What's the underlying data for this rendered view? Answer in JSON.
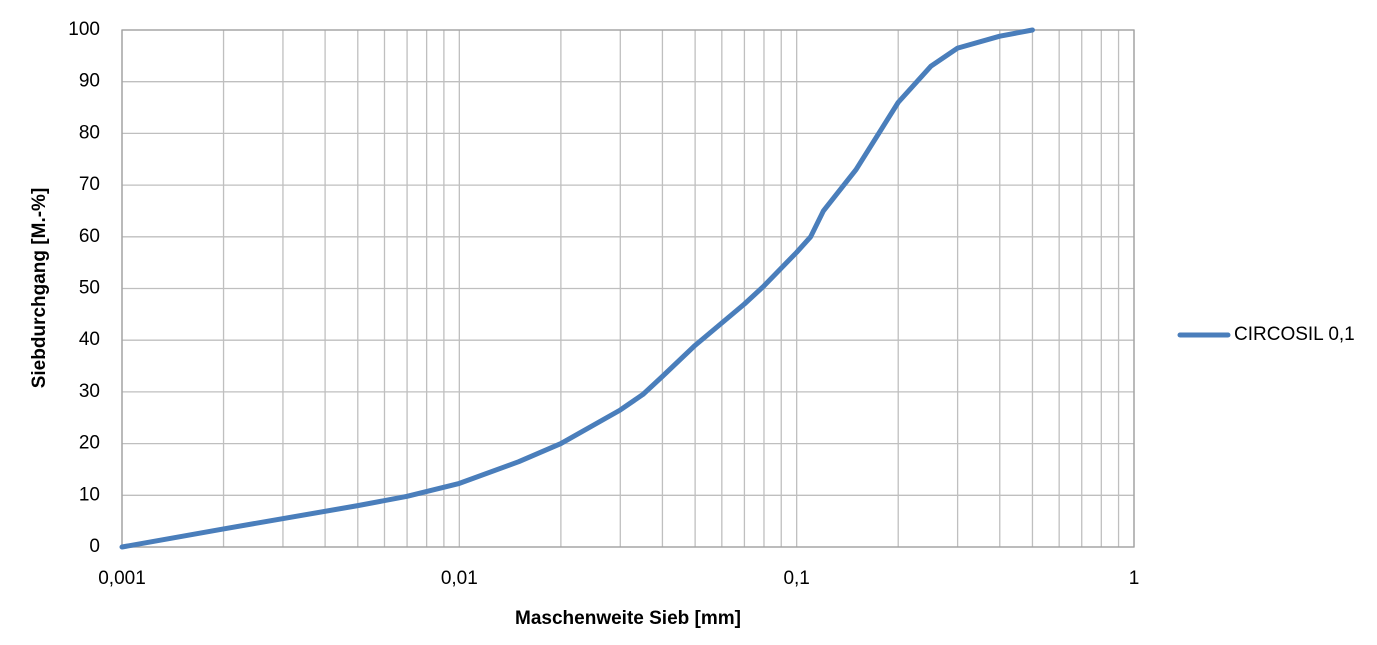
{
  "chart_data": {
    "type": "line",
    "xlabel": "Maschenweite Sieb [mm]",
    "ylabel": "Siebdurchgang [M.-%]",
    "x_log": true,
    "xlim": [
      0.001,
      1
    ],
    "xticks": [
      {
        "value": 0.001,
        "label": "0,001"
      },
      {
        "value": 0.01,
        "label": "0,01"
      },
      {
        "value": 0.1,
        "label": "0,1"
      },
      1
    ],
    "ylim": [
      0,
      100
    ],
    "yticks": [
      0,
      10,
      20,
      30,
      40,
      50,
      60,
      70,
      80,
      90,
      100
    ],
    "grid": true,
    "minor_grid": true,
    "legend": "right",
    "x": [
      0.001,
      0.002,
      0.005,
      0.007,
      0.01,
      0.015,
      0.02,
      0.03,
      0.035,
      0.04,
      0.05,
      0.07,
      0.08,
      0.1,
      0.11,
      0.12,
      0.15,
      0.2,
      0.25,
      0.3,
      0.4,
      0.5
    ],
    "series": [
      {
        "name": "CIRCOSIL 0,1",
        "color": "#4a7ebb",
        "values": [
          0,
          3.5,
          8,
          9.8,
          12.3,
          16.5,
          20,
          26.5,
          29.5,
          33,
          39,
          47,
          50.5,
          57,
          60,
          65,
          73,
          86,
          93,
          96.5,
          98.8,
          100
        ]
      }
    ]
  }
}
